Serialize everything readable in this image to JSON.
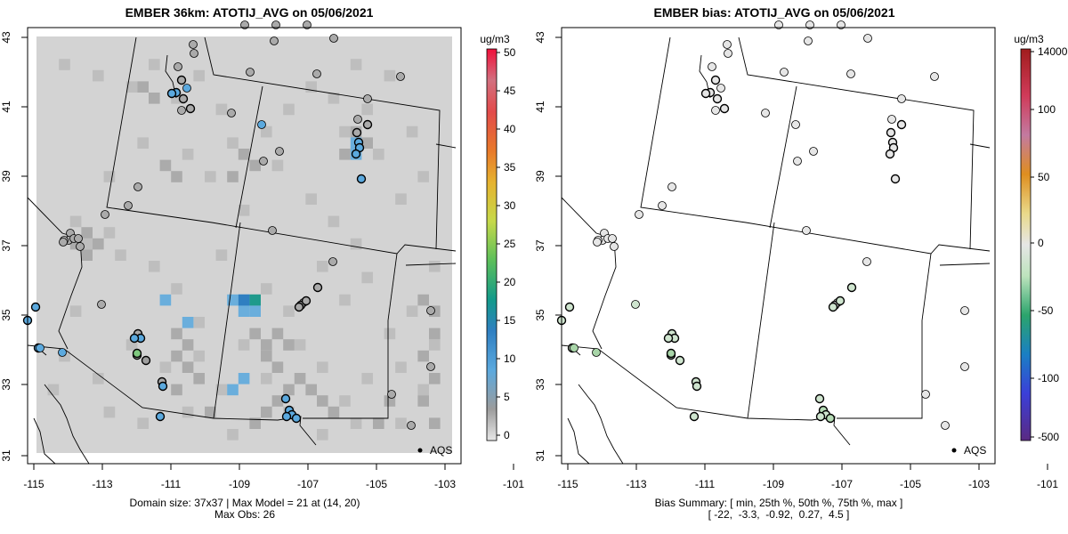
{
  "left_panel": {
    "title": "EMBER 36km: ATOTIJ_AVG on 05/06/2021",
    "units": "ug/m3",
    "colorbar_ticks": [
      "0",
      "5",
      "10",
      "15",
      "20",
      "25",
      "30",
      "35",
      "40",
      "45",
      "50"
    ],
    "legend_label": "AQS",
    "caption_line1": "Domain size: 37x37 | Max Model = 21 at (14, 20)",
    "caption_line2": "Max Obs: 26"
  },
  "right_panel": {
    "title": "EMBER bias: ATOTIJ_AVG on 05/06/2021",
    "units": "ug/m3",
    "colorbar_ticks": [
      "-500",
      "-100",
      "-50",
      "0",
      "50",
      "100",
      "14000"
    ],
    "legend_label": "AQS",
    "caption_line1": "Bias Summary: [ min, 25th %, 50th %, 75th %, max ]",
    "caption_line2": "[ -22,  -3.3,  -0.92,  0.27,  4.5 ]"
  },
  "axes": {
    "x_ticks": [
      "-115",
      "-113",
      "-111",
      "-109",
      "-107",
      "-105",
      "-103",
      "-101"
    ],
    "y_ticks": [
      "31",
      "33",
      "35",
      "37",
      "39",
      "41",
      "43"
    ]
  },
  "colors": {
    "grid_light": "#d3d3d3",
    "grid_mid": "#bebebe",
    "grid_dark": "#ababab",
    "blue_cell": "#6aaedc",
    "teal_cell": "#1f9a8c",
    "green_obs": "#7fc97f"
  }
}
